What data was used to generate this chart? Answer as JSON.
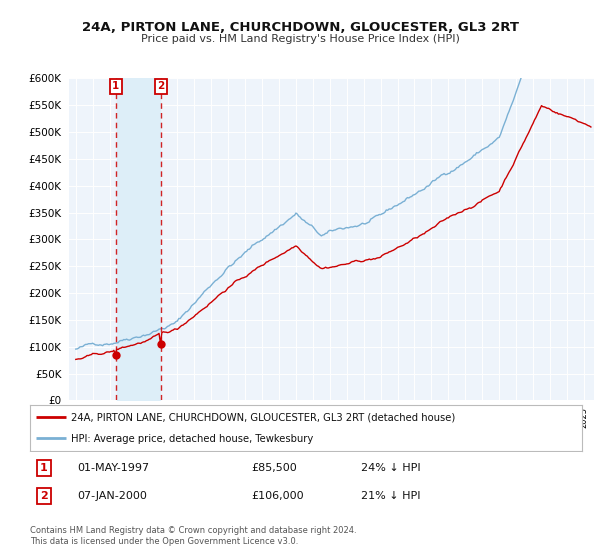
{
  "title": "24A, PIRTON LANE, CHURCHDOWN, GLOUCESTER, GL3 2RT",
  "subtitle": "Price paid vs. HM Land Registry's House Price Index (HPI)",
  "legend_line1": "24A, PIRTON LANE, CHURCHDOWN, GLOUCESTER, GL3 2RT (detached house)",
  "legend_line2": "HPI: Average price, detached house, Tewkesbury",
  "purchase1_label": "1",
  "purchase1_date": "01-MAY-1997",
  "purchase1_price": "£85,500",
  "purchase1_hpi": "24% ↓ HPI",
  "purchase1_year": 1997.37,
  "purchase1_value": 85500,
  "purchase2_label": "2",
  "purchase2_date": "07-JAN-2000",
  "purchase2_price": "£106,000",
  "purchase2_hpi": "21% ↓ HPI",
  "purchase2_year": 2000.03,
  "purchase2_value": 106000,
  "footer": "Contains HM Land Registry data © Crown copyright and database right 2024.\nThis data is licensed under the Open Government Licence v3.0.",
  "hpi_color": "#7ab0d4",
  "price_color": "#cc0000",
  "shade_color": "#ddeef8",
  "background_chart": "#eef4fb",
  "ylim_min": 0,
  "ylim_max": 600000,
  "y_tick_step": 50000
}
